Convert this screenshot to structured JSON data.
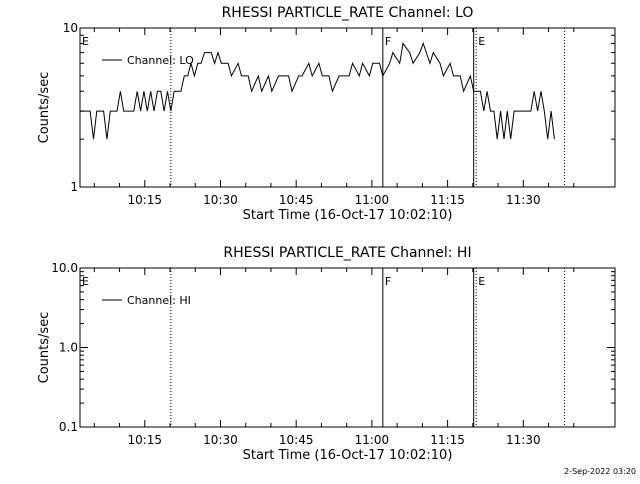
{
  "chart_data": [
    {
      "type": "line",
      "title": "RHESSI PARTICLE_RATE Channel: LO",
      "xlabel": "Start Time (16-Oct-17 10:02:10)",
      "ylabel": "Counts/sec",
      "y_scale": "log",
      "ylim": [
        1,
        10
      ],
      "xlim": [
        "10:02:10",
        "11:48:10"
      ],
      "x_ticks": [
        "10:15",
        "10:30",
        "10:45",
        "11:00",
        "11:15",
        "11:30"
      ],
      "y_ticks": [
        "1",
        "10"
      ],
      "legend": {
        "placement": "top-left",
        "label": "Channel: LO"
      },
      "series": [
        {
          "name": "Channel: LO",
          "color": "#000000",
          "x": [
            "10:02:10",
            "10:04:10",
            "10:04:50",
            "10:05:30",
            "10:06:10",
            "10:06:50",
            "10:07:30",
            "10:08:10",
            "10:08:50",
            "10:09:30",
            "10:10:10",
            "10:10:50",
            "10:11:30",
            "10:12:10",
            "10:12:50",
            "10:13:30",
            "10:14:10",
            "10:14:50",
            "10:15:30",
            "10:16:10",
            "10:16:50",
            "10:17:30",
            "10:18:10",
            "10:18:50",
            "10:19:30",
            "10:20:10",
            "10:20:50",
            "10:21:30",
            "10:22:10",
            "10:22:50",
            "10:23:30",
            "10:24:10",
            "10:24:50",
            "10:25:30",
            "10:26:10",
            "10:26:50",
            "10:27:30",
            "10:28:10",
            "10:28:50",
            "10:29:30",
            "10:30:10",
            "10:31:30",
            "10:32:10",
            "10:33:30",
            "10:34:10",
            "10:35:30",
            "10:36:10",
            "10:37:30",
            "10:38:10",
            "10:39:30",
            "10:40:10",
            "10:41:30",
            "10:42:10",
            "10:43:30",
            "10:44:10",
            "10:45:30",
            "10:46:10",
            "10:47:30",
            "10:48:10",
            "10:49:30",
            "10:50:10",
            "10:51:30",
            "10:52:10",
            "10:53:30",
            "10:54:10",
            "10:55:30",
            "10:56:10",
            "10:57:30",
            "10:58:10",
            "10:59:30",
            "11:00:10",
            "11:01:30",
            "11:02:10",
            "11:03:30",
            "11:04:10",
            "11:05:30",
            "11:06:10",
            "11:07:30",
            "11:08:10",
            "11:09:30",
            "11:10:10",
            "11:11:30",
            "11:12:10",
            "11:13:30",
            "11:14:10",
            "11:15:30",
            "11:16:10",
            "11:17:30",
            "11:18:10",
            "11:19:30",
            "11:20:10",
            "11:21:30",
            "11:22:10",
            "11:22:50",
            "11:23:30",
            "11:24:10",
            "11:24:50",
            "11:25:30",
            "11:26:10",
            "11:26:50",
            "11:27:30",
            "11:28:10",
            "11:28:50",
            "11:29:30",
            "11:30:10",
            "11:31:30",
            "11:32:10",
            "11:32:50",
            "11:33:30",
            "11:34:10",
            "11:34:50",
            "11:35:30",
            "11:36:10"
          ],
          "values": [
            3,
            3,
            2,
            3,
            3,
            3,
            2,
            3,
            3,
            3,
            4,
            3,
            3,
            3,
            3,
            4,
            3,
            4,
            3,
            4,
            3,
            4,
            4,
            3,
            4,
            3,
            4,
            4,
            4,
            5,
            5,
            6,
            5,
            6,
            6,
            7,
            7,
            7,
            6,
            7,
            6,
            6,
            5,
            6,
            5,
            5,
            4,
            5,
            4,
            5,
            4,
            5,
            5,
            5,
            4,
            5,
            5,
            6,
            5,
            6,
            5,
            5,
            4,
            5,
            5,
            5,
            6,
            5,
            6,
            5,
            6,
            6,
            5,
            6,
            7,
            6,
            8,
            7,
            6,
            7,
            8,
            6,
            7,
            6,
            5,
            6,
            5,
            5,
            4,
            5,
            4,
            4,
            3,
            4,
            3,
            3,
            2,
            3,
            2,
            3,
            2,
            3,
            3,
            3,
            3,
            3,
            4,
            3,
            4,
            3,
            2,
            3,
            2
          ]
        }
      ],
      "markers": [
        {
          "label": "E",
          "x": "10:02:10",
          "style": "dotted"
        },
        {
          "label": "",
          "x": "10:20:10",
          "style": "dotted"
        },
        {
          "label": "F",
          "x": "11:02:10",
          "style": "solid"
        },
        {
          "label": "",
          "x": "11:20:10",
          "style": "solid"
        },
        {
          "label": "E",
          "x": "11:20:40",
          "style": "dotted"
        },
        {
          "label": "",
          "x": "11:38:10",
          "style": "dotted"
        }
      ]
    },
    {
      "type": "line",
      "title": "RHESSI PARTICLE_RATE Channel: HI",
      "xlabel": "Start Time (16-Oct-17 10:02:10)",
      "ylabel": "Counts/sec",
      "y_scale": "log",
      "ylim": [
        0.1,
        10
      ],
      "xlim": [
        "10:02:10",
        "11:48:10"
      ],
      "x_ticks": [
        "10:15",
        "10:30",
        "10:45",
        "11:00",
        "11:15",
        "11:30"
      ],
      "y_ticks": [
        "0.1",
        "1.0",
        "10.0"
      ],
      "legend": {
        "placement": "top-left",
        "label": "Channel: HI"
      },
      "series": [
        {
          "name": "Channel: HI",
          "color": "#000000",
          "x": [],
          "values": []
        }
      ],
      "markers": [
        {
          "label": "E",
          "x": "10:02:10",
          "style": "dotted"
        },
        {
          "label": "",
          "x": "10:20:10",
          "style": "dotted"
        },
        {
          "label": "F",
          "x": "11:02:10",
          "style": "solid"
        },
        {
          "label": "",
          "x": "11:20:10",
          "style": "solid"
        },
        {
          "label": "E",
          "x": "11:20:40",
          "style": "dotted"
        },
        {
          "label": "",
          "x": "11:38:10",
          "style": "dotted"
        }
      ]
    }
  ],
  "footer": {
    "timestamp": "2-Sep-2022 03:20"
  }
}
